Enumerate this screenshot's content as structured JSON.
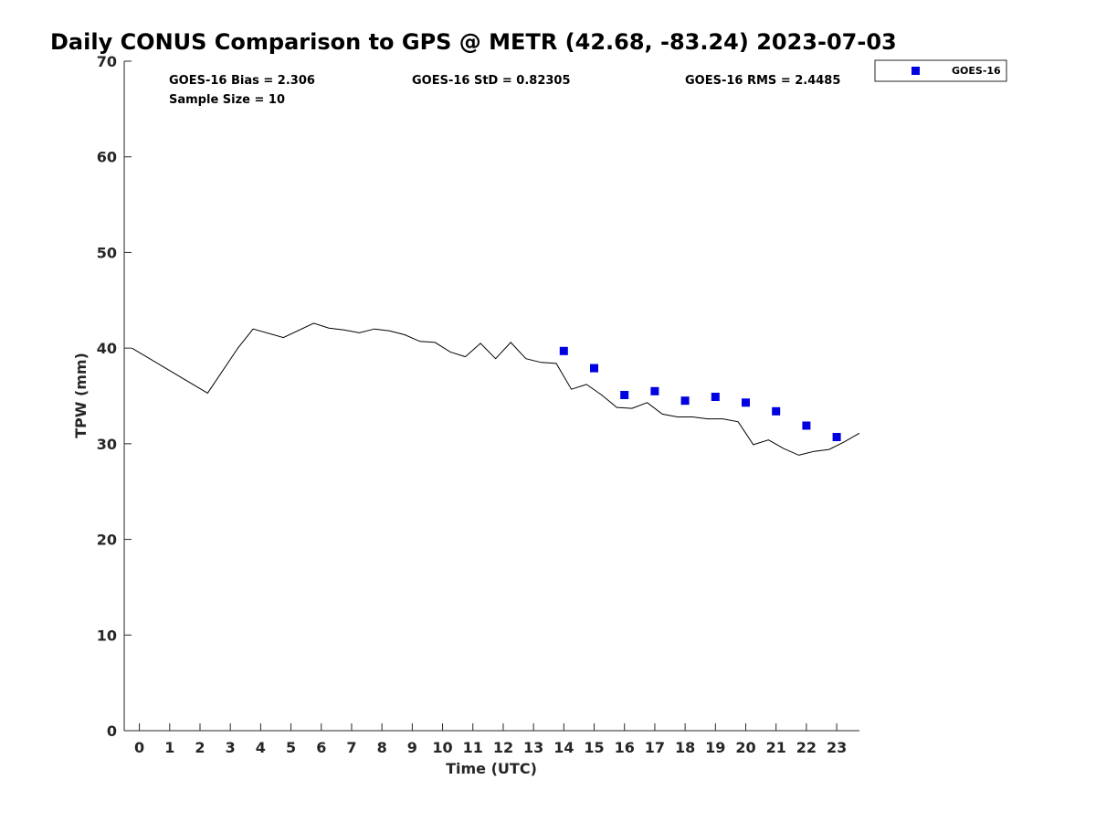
{
  "chart_data": {
    "type": "line",
    "title": "Daily CONUS Comparison to GPS @ METR (42.68, -83.24) 2023-07-03",
    "xlabel": "Time (UTC)",
    "ylabel": "TPW (mm)",
    "xlim": [
      -0.5,
      23.75
    ],
    "ylim": [
      0,
      70
    ],
    "x_ticks": [
      0,
      1,
      2,
      3,
      4,
      5,
      6,
      7,
      8,
      9,
      10,
      11,
      12,
      13,
      14,
      15,
      16,
      17,
      18,
      19,
      20,
      21,
      22,
      23
    ],
    "y_ticks": [
      0,
      10,
      20,
      30,
      40,
      50,
      60,
      70
    ],
    "grid": false,
    "legend_position": "top-right outside",
    "stats": {
      "bias": "GOES-16 Bias = 2.306",
      "std": "GOES-16 StD = 0.82305",
      "rms": "GOES-16 RMS = 2.4485",
      "sample": "Sample Size = 10"
    },
    "series": [
      {
        "style": "line",
        "color": "#000000",
        "x": [
          -0.25,
          2.25,
          3.25,
          3.75,
          4.75,
          5.75,
          6.25,
          6.75,
          7.25,
          7.75,
          8.25,
          8.75,
          9.25,
          9.75,
          10.25,
          10.75,
          11.25,
          11.75,
          12.25,
          12.75,
          13.25,
          13.75,
          14.25,
          14.75,
          15.25,
          15.75,
          16.25,
          16.75,
          17.25,
          17.75,
          18.25,
          18.75,
          19.25,
          19.75,
          20.25,
          20.75,
          21.25,
          21.75,
          22.25,
          22.75,
          23.25,
          23.75
        ],
        "y": [
          40.0,
          35.3,
          40.0,
          42.0,
          41.1,
          42.6,
          42.1,
          41.9,
          41.6,
          42.0,
          41.8,
          41.4,
          40.7,
          40.6,
          39.6,
          39.1,
          40.5,
          38.9,
          40.6,
          38.9,
          38.5,
          38.4,
          35.7,
          36.2,
          35.1,
          33.8,
          33.7,
          34.3,
          33.1,
          32.8,
          32.8,
          32.6,
          32.6,
          32.3,
          29.9,
          30.4,
          29.5,
          28.8,
          29.2,
          29.4,
          30.2,
          31.1
        ]
      },
      {
        "name": "GOES-16",
        "style": "markers",
        "marker": "square",
        "color": "#0000e0",
        "x": [
          14,
          15,
          16,
          17,
          18,
          19,
          20,
          21,
          22,
          23
        ],
        "y": [
          39.7,
          37.9,
          35.1,
          35.5,
          34.5,
          34.9,
          34.3,
          33.4,
          31.9,
          30.7
        ]
      }
    ]
  }
}
